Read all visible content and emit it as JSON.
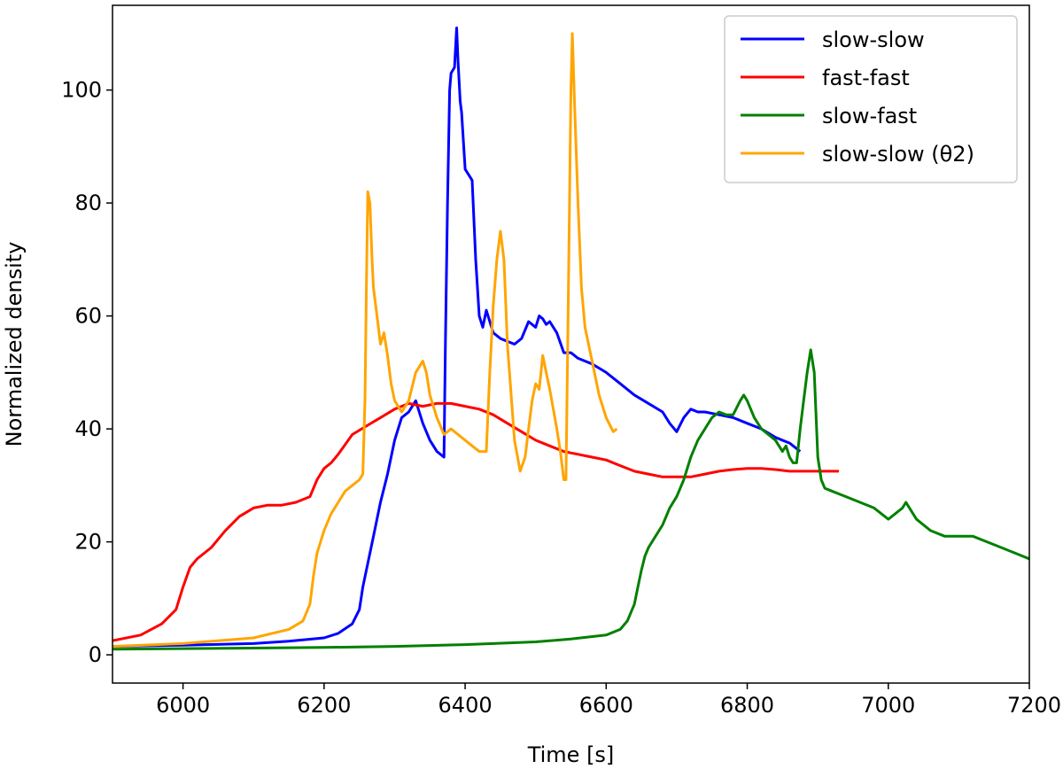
{
  "chart_data": {
    "type": "line",
    "title": "",
    "xlabel": "Time [s]",
    "ylabel": "Normalized density",
    "xlim": [
      5900,
      7200
    ],
    "ylim": [
      -5,
      115
    ],
    "xticks": [
      6000,
      6200,
      6400,
      6600,
      6800,
      7000,
      7200
    ],
    "yticks": [
      0,
      20,
      40,
      60,
      80,
      100
    ],
    "grid": false,
    "legend_position": "top-right",
    "series": [
      {
        "name": "slow-slow",
        "color": "#0000ff",
        "x": [
          5900,
          6000,
          6100,
          6150,
          6200,
          6220,
          6240,
          6250,
          6255,
          6260,
          6265,
          6270,
          6280,
          6290,
          6300,
          6310,
          6320,
          6330,
          6340,
          6350,
          6360,
          6370,
          6372,
          6375,
          6378,
          6380,
          6385,
          6388,
          6390,
          6393,
          6395,
          6400,
          6405,
          6410,
          6415,
          6420,
          6425,
          6430,
          6435,
          6440,
          6450,
          6460,
          6470,
          6480,
          6490,
          6500,
          6505,
          6510,
          6515,
          6520,
          6530,
          6540,
          6550,
          6560,
          6580,
          6600,
          6620,
          6640,
          6660,
          6680,
          6690,
          6700,
          6710,
          6720,
          6730,
          6740,
          6760,
          6780,
          6800,
          6820,
          6840,
          6860,
          6875
        ],
        "y": [
          1.5,
          1.7,
          2.0,
          2.4,
          3.0,
          3.8,
          5.5,
          8,
          12,
          15,
          18,
          21,
          27,
          32,
          38,
          42,
          43,
          45,
          41,
          38,
          36,
          35,
          55,
          80,
          100,
          103,
          104,
          111,
          105,
          98,
          96,
          86,
          85,
          84,
          70,
          60,
          58,
          61,
          59,
          57,
          56,
          55.5,
          55,
          56,
          59,
          58,
          60,
          59.5,
          58.5,
          59,
          57,
          53.5,
          53.5,
          52.5,
          51.5,
          50,
          48,
          46,
          44.5,
          43,
          41,
          39.5,
          42,
          43.5,
          43,
          43,
          42.5,
          42,
          41,
          40,
          38.5,
          37.5,
          36
        ]
      },
      {
        "name": "fast-fast",
        "color": "#ff0000",
        "x": [
          5900,
          5940,
          5970,
          5990,
          6000,
          6010,
          6020,
          6040,
          6060,
          6080,
          6100,
          6120,
          6140,
          6160,
          6180,
          6190,
          6200,
          6210,
          6220,
          6240,
          6260,
          6280,
          6300,
          6320,
          6340,
          6360,
          6380,
          6400,
          6420,
          6440,
          6460,
          6480,
          6500,
          6520,
          6540,
          6560,
          6580,
          6600,
          6620,
          6640,
          6660,
          6680,
          6700,
          6720,
          6740,
          6760,
          6780,
          6800,
          6820,
          6840,
          6860,
          6880,
          6900,
          6930
        ],
        "y": [
          2.5,
          3.5,
          5.5,
          8,
          12,
          15.5,
          17,
          19,
          22,
          24.5,
          26,
          26.5,
          26.5,
          27,
          28,
          31,
          33,
          34,
          35.5,
          39,
          40.5,
          42,
          43.5,
          44.5,
          44,
          44.5,
          44.5,
          44,
          43.5,
          42.5,
          41,
          39.5,
          38,
          37,
          36,
          35.5,
          35,
          34.5,
          33.5,
          32.5,
          32,
          31.5,
          31.5,
          31.5,
          32,
          32.5,
          32.8,
          33,
          33,
          32.8,
          32.5,
          32.5,
          32.5,
          32.5
        ]
      },
      {
        "name": "slow-fast",
        "color": "#008000",
        "x": [
          5900,
          6000,
          6100,
          6200,
          6300,
          6400,
          6500,
          6550,
          6600,
          6620,
          6630,
          6640,
          6645,
          6650,
          6655,
          6660,
          6670,
          6680,
          6690,
          6700,
          6710,
          6720,
          6730,
          6740,
          6750,
          6760,
          6770,
          6780,
          6790,
          6795,
          6800,
          6810,
          6820,
          6830,
          6840,
          6850,
          6855,
          6860,
          6865,
          6870,
          6875,
          6880,
          6885,
          6890,
          6895,
          6900,
          6905,
          6910,
          6920,
          6940,
          6960,
          6980,
          7000,
          7010,
          7020,
          7025,
          7030,
          7040,
          7060,
          7080,
          7100,
          7120,
          7140,
          7160,
          7180,
          7200
        ],
        "y": [
          1.0,
          1.1,
          1.2,
          1.3,
          1.5,
          1.8,
          2.3,
          2.8,
          3.5,
          4.5,
          6,
          9,
          12,
          15,
          17.5,
          19,
          21,
          23,
          26,
          28,
          31,
          35,
          38,
          40,
          42,
          43,
          42.5,
          42.5,
          45,
          46,
          45,
          42,
          40,
          39,
          38,
          36,
          37,
          35,
          34,
          34,
          40,
          45,
          50,
          54,
          50,
          35,
          31,
          29.5,
          29,
          28,
          27,
          26,
          24,
          25,
          26,
          27,
          26,
          24,
          22,
          21,
          21,
          21,
          20,
          19,
          18,
          17
        ]
      },
      {
        "name": "slow-slow (θ2)",
        "color": "#ffa500",
        "x": [
          5900,
          6000,
          6100,
          6150,
          6170,
          6180,
          6185,
          6190,
          6200,
          6210,
          6220,
          6230,
          6240,
          6250,
          6255,
          6258,
          6260,
          6262,
          6265,
          6268,
          6270,
          6275,
          6280,
          6285,
          6290,
          6295,
          6300,
          6310,
          6320,
          6330,
          6340,
          6345,
          6350,
          6360,
          6370,
          6380,
          6390,
          6400,
          6410,
          6420,
          6430,
          6435,
          6440,
          6445,
          6450,
          6455,
          6460,
          6470,
          6478,
          6485,
          6490,
          6495,
          6500,
          6505,
          6510,
          6515,
          6520,
          6530,
          6535,
          6540,
          6543,
          6546,
          6550,
          6552,
          6555,
          6560,
          6565,
          6570,
          6580,
          6590,
          6600,
          6610,
          6615
        ],
        "y": [
          1.5,
          2.0,
          3.0,
          4.5,
          6,
          9,
          14,
          18,
          22,
          25,
          27,
          29,
          30,
          31,
          32,
          45,
          65,
          82,
          80,
          70,
          65,
          60,
          55,
          57,
          53,
          48,
          45,
          43,
          45,
          50,
          52,
          50,
          46,
          42,
          39,
          40,
          39,
          38,
          37,
          36,
          36,
          50,
          62,
          70,
          75,
          70,
          55,
          38,
          32.5,
          35,
          40,
          45,
          48,
          47,
          53,
          50,
          47,
          40,
          36,
          31,
          31,
          60,
          100,
          110,
          98,
          80,
          65,
          58,
          52,
          46,
          42,
          39.5,
          40
        ]
      }
    ]
  }
}
